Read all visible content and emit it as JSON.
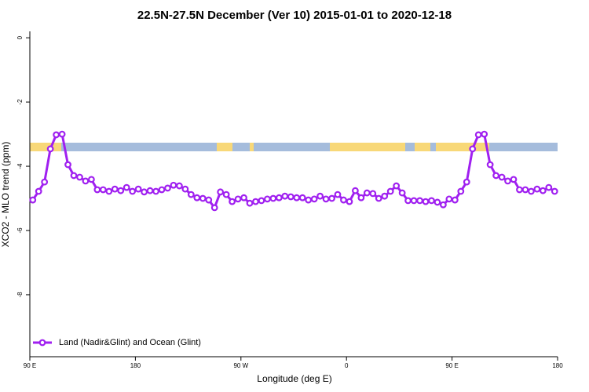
{
  "chart_data": {
    "type": "line",
    "title": "22.5N-27.5N December (Ver 10)   2015-01-01 to 2020-12-18",
    "xlabel": "Longitude (deg E)",
    "ylabel": "XCO2 - MLO trend (ppm)",
    "xlim": [
      90,
      540
    ],
    "xticks": [
      {
        "value": 90,
        "label": "90 E"
      },
      {
        "value": 180,
        "label": "180"
      },
      {
        "value": 270,
        "label": "90 W"
      },
      {
        "value": 360,
        "label": "0"
      },
      {
        "value": 450,
        "label": "90 E"
      },
      {
        "value": 540,
        "label": "180"
      }
    ],
    "ylim": [
      -9.93,
      0.2
    ],
    "yticks": [
      0,
      -2,
      -4,
      -6,
      -8
    ],
    "legend": "bottomleft",
    "x": [
      92.5,
      97.5,
      102.5,
      107.5,
      112.5,
      117.5,
      122.5,
      127.5,
      132.5,
      137.5,
      142.5,
      147.5,
      152.5,
      157.5,
      162.5,
      167.5,
      172.5,
      177.5,
      182.5,
      187.5,
      192.5,
      197.5,
      202.5,
      207.5,
      212.5,
      217.5,
      222.5,
      227.5,
      232.5,
      237.5,
      242.5,
      247.5,
      252.5,
      257.5,
      262.5,
      267.5,
      272.5,
      277.5,
      282.5,
      287.5,
      292.5,
      297.5,
      302.5,
      307.5,
      312.5,
      317.5,
      322.5,
      327.5,
      332.5,
      337.5,
      342.5,
      347.5,
      352.5,
      357.5,
      362.5,
      367.5,
      372.5,
      377.5,
      382.5,
      387.5,
      392.5,
      397.5,
      402.5,
      407.5,
      412.5,
      417.5,
      422.5,
      427.5,
      432.5,
      437.5,
      442.5,
      447.5,
      452.5,
      457.5,
      462.5,
      467.5,
      472.5,
      477.5,
      482.5,
      487.5,
      492.5,
      497.5,
      502.5,
      507.5,
      512.5,
      517.5,
      522.5,
      527.5,
      532.5,
      537.5
    ],
    "series": [
      {
        "name": "Land (Nadir&Glint) and Ocean (Glint)",
        "color": "#a020f0",
        "values": [
          -5.05,
          -4.78,
          -4.49,
          -3.46,
          -3.02,
          -3.0,
          -3.95,
          -4.29,
          -4.34,
          -4.46,
          -4.41,
          -4.73,
          -4.73,
          -4.78,
          -4.71,
          -4.76,
          -4.66,
          -4.78,
          -4.71,
          -4.8,
          -4.76,
          -4.78,
          -4.73,
          -4.68,
          -4.59,
          -4.61,
          -4.71,
          -4.88,
          -4.98,
          -5.0,
          -5.05,
          -5.29,
          -4.8,
          -4.88,
          -5.1,
          -5.02,
          -4.98,
          -5.15,
          -5.1,
          -5.07,
          -5.02,
          -5.0,
          -4.98,
          -4.93,
          -4.95,
          -4.98,
          -4.98,
          -5.05,
          -5.02,
          -4.93,
          -5.02,
          -5.0,
          -4.88,
          -5.05,
          -5.1,
          -4.76,
          -4.98,
          -4.83,
          -4.85,
          -5.0,
          -4.93,
          -4.78,
          -4.61,
          -4.83,
          -5.07,
          -5.07,
          -5.07,
          -5.1,
          -5.07,
          -5.12,
          -5.2,
          -5.02,
          -5.05,
          -4.78,
          -4.49,
          -3.46,
          -3.02,
          -3.0,
          -3.95,
          -4.29,
          -4.34,
          -4.46,
          -4.41,
          -4.73,
          -4.73,
          -4.78,
          -4.71,
          -4.76,
          -4.66,
          -4.78
        ]
      }
    ]
  }
}
